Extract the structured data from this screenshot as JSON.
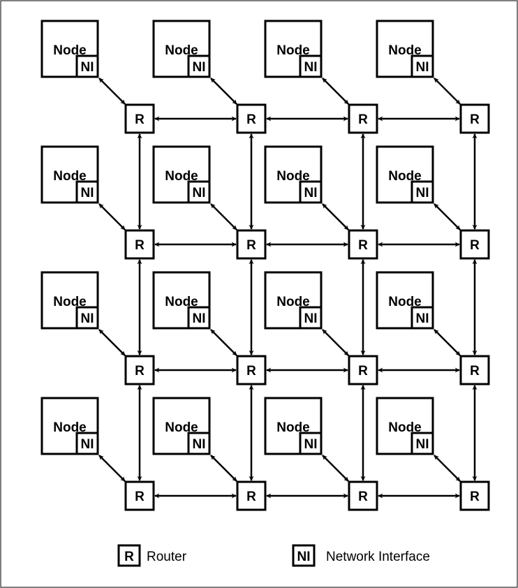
{
  "diagram": {
    "rows": 4,
    "cols": 4,
    "node_label": "Node",
    "ni_label": "NI",
    "router_label": "R",
    "link_type": "bidirectional"
  },
  "legend": {
    "router_symbol": "R",
    "router_text": "Router",
    "ni_symbol": "NI",
    "ni_text": "Network Interface"
  }
}
